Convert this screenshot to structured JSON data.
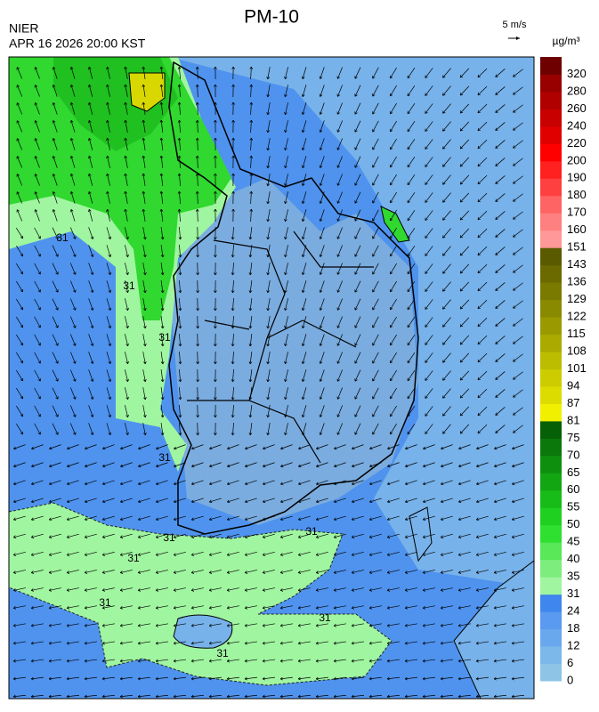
{
  "header": {
    "title": "PM-10",
    "agency": "NIER",
    "datetime": "APR 16 2026 20:00 KST",
    "wind_scale": "5 m/s",
    "unit": "µg/m³"
  },
  "colorbar": {
    "labels": [
      0,
      6,
      12,
      18,
      24,
      31,
      35,
      40,
      45,
      50,
      55,
      60,
      65,
      70,
      75,
      81,
      87,
      94,
      101,
      108,
      115,
      122,
      129,
      136,
      143,
      151,
      160,
      170,
      180,
      190,
      200,
      220,
      240,
      260,
      280,
      320
    ],
    "colors": [
      "#8ec5e6",
      "#7cb8ea",
      "#6aa8ee",
      "#5a9af0",
      "#3f87ee",
      "#a0f5a0",
      "#7ded7d",
      "#58e858",
      "#30e030",
      "#20d020",
      "#18bc18",
      "#12a612",
      "#0e900e",
      "#0a780a",
      "#066006",
      "#f0f000",
      "#dcdc00",
      "#cccc00",
      "#bcbc00",
      "#aaaa00",
      "#9a9a00",
      "#8a8a00",
      "#7a7a00",
      "#6a6a00",
      "#5a5a00",
      "#ff9898",
      "#ff8080",
      "#ff6464",
      "#ff4040",
      "#ff2020",
      "#ff0000",
      "#e00000",
      "#c80000",
      "#b00000",
      "#980000",
      "#6e0000"
    ]
  },
  "contour_labels": [
    "31",
    "31",
    "31",
    "31",
    "31",
    "31",
    "31",
    "31",
    "31",
    "31"
  ]
}
